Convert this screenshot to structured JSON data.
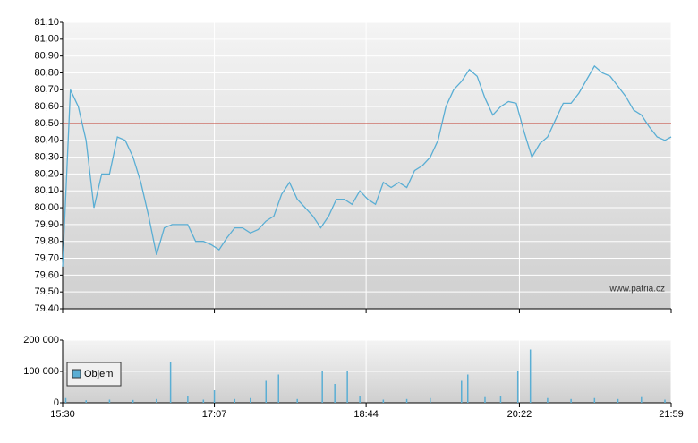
{
  "chart_data": [
    {
      "type": "line",
      "watermark": "www.patria.cz",
      "color": "#5aaed4",
      "reference_line": 80.5,
      "reference_color": "#c0392b",
      "grid": true,
      "xlim": [
        "15:30",
        "21:59"
      ],
      "ylim": [
        79.4,
        81.1
      ],
      "yticks": [
        {
          "value": 79.4,
          "label": "79,40"
        },
        {
          "value": 79.5,
          "label": "79,50"
        },
        {
          "value": 79.6,
          "label": "79,60"
        },
        {
          "value": 79.7,
          "label": "79,70"
        },
        {
          "value": 79.8,
          "label": "79,80"
        },
        {
          "value": 79.9,
          "label": "79,90"
        },
        {
          "value": 80.0,
          "label": "80,00"
        },
        {
          "value": 80.1,
          "label": "80,10"
        },
        {
          "value": 80.2,
          "label": "80,20"
        },
        {
          "value": 80.3,
          "label": "80,30"
        },
        {
          "value": 80.4,
          "label": "80,40"
        },
        {
          "value": 80.5,
          "label": "80,50"
        },
        {
          "value": 80.6,
          "label": "80,60"
        },
        {
          "value": 80.7,
          "label": "80,70"
        },
        {
          "value": 80.8,
          "label": "80,80"
        },
        {
          "value": 80.9,
          "label": "80,90"
        },
        {
          "value": 81.0,
          "label": "81,00"
        },
        {
          "value": 81.1,
          "label": "81,10"
        }
      ],
      "x": [
        "15:30",
        "15:35",
        "15:40",
        "15:45",
        "15:50",
        "15:55",
        "16:00",
        "16:05",
        "16:10",
        "16:15",
        "16:20",
        "16:25",
        "16:30",
        "16:35",
        "16:40",
        "16:45",
        "16:50",
        "16:55",
        "17:00",
        "17:05",
        "17:10",
        "17:15",
        "17:20",
        "17:25",
        "17:30",
        "17:35",
        "17:40",
        "17:45",
        "17:50",
        "17:55",
        "18:00",
        "18:05",
        "18:10",
        "18:15",
        "18:20",
        "18:25",
        "18:30",
        "18:35",
        "18:40",
        "18:45",
        "18:50",
        "18:55",
        "19:00",
        "19:05",
        "19:10",
        "19:15",
        "19:20",
        "19:25",
        "19:30",
        "19:35",
        "19:40",
        "19:45",
        "19:50",
        "19:55",
        "20:00",
        "20:05",
        "20:10",
        "20:15",
        "20:20",
        "20:25",
        "20:30",
        "20:35",
        "20:40",
        "20:45",
        "20:50",
        "20:55",
        "21:00",
        "21:05",
        "21:10",
        "21:15",
        "21:20",
        "21:25",
        "21:30",
        "21:35",
        "21:40",
        "21:45",
        "21:50",
        "21:55",
        "21:59"
      ],
      "values": [
        79.65,
        80.7,
        80.6,
        80.4,
        80.0,
        80.2,
        80.2,
        80.42,
        80.4,
        80.3,
        80.15,
        79.95,
        79.72,
        79.88,
        79.9,
        79.9,
        79.9,
        79.8,
        79.8,
        79.78,
        79.75,
        79.82,
        79.88,
        79.88,
        79.85,
        79.87,
        79.92,
        79.95,
        80.08,
        80.15,
        80.05,
        80.0,
        79.95,
        79.88,
        79.95,
        80.05,
        80.05,
        80.02,
        80.1,
        80.05,
        80.02,
        80.15,
        80.12,
        80.15,
        80.12,
        80.22,
        80.25,
        80.3,
        80.4,
        80.6,
        80.7,
        80.75,
        80.82,
        80.78,
        80.65,
        80.55,
        80.6,
        80.63,
        80.62,
        80.45,
        80.3,
        80.38,
        80.42,
        80.52,
        80.62,
        80.62,
        80.68,
        80.76,
        80.84,
        80.8,
        80.78,
        80.72,
        80.66,
        80.58,
        80.55,
        80.48,
        80.42,
        80.4,
        80.42
      ]
    },
    {
      "type": "bar",
      "grid": true,
      "xlim": [
        "15:30",
        "21:59"
      ],
      "xticks": [
        "15:30",
        "17:07",
        "18:44",
        "20:22",
        "21:59"
      ],
      "ylim": [
        0,
        200000
      ],
      "yticks": [
        0,
        {
          "value": 100000,
          "label": "100 000"
        },
        {
          "value": 200000,
          "label": "200 000"
        }
      ],
      "x": [
        "15:32",
        "15:45",
        "16:00",
        "16:15",
        "16:30",
        "16:39",
        "16:50",
        "17:00",
        "17:07",
        "17:20",
        "17:30",
        "17:40",
        "17:48",
        "18:00",
        "18:16",
        "18:24",
        "18:32",
        "18:40",
        "18:55",
        "19:10",
        "19:25",
        "19:45",
        "19:49",
        "20:00",
        "20:10",
        "20:21",
        "20:29",
        "20:40",
        "20:55",
        "21:10",
        "21:25",
        "21:40",
        "21:55"
      ],
      "series": [
        {
          "name": "Objem",
          "color": "#5aaed4",
          "values": [
            15000,
            8000,
            10000,
            9000,
            12000,
            130000,
            20000,
            10000,
            40000,
            12000,
            15000,
            70000,
            90000,
            12000,
            100000,
            60000,
            100000,
            20000,
            10000,
            12000,
            15000,
            70000,
            90000,
            18000,
            20000,
            100000,
            170000,
            15000,
            12000,
            15000,
            12000,
            18000,
            10000
          ]
        }
      ]
    }
  ]
}
